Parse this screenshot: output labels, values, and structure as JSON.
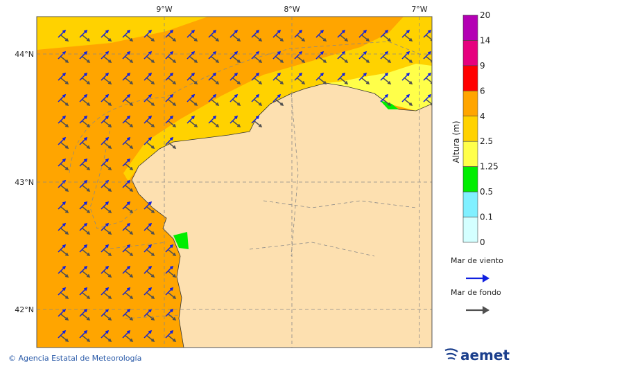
{
  "map": {
    "lon_labels": [
      "9°W",
      "8°W",
      "7°W"
    ],
    "lat_labels": [
      "44°N",
      "43°N",
      "42°N"
    ]
  },
  "colorbar": {
    "title": "Altura (m)",
    "labels": [
      "20",
      "14",
      "9",
      "6",
      "4",
      "2.5",
      "1.25",
      "0.5",
      "0.1",
      "0"
    ],
    "colors": [
      "#b400b4",
      "#e6007e",
      "#ff0000",
      "#ffa500",
      "#ffd200",
      "#ffff4a",
      "#00ee00",
      "#80f0ff",
      "#d4ffff"
    ]
  },
  "legend": {
    "items": [
      {
        "label": "Mar de viento",
        "color": "#1020e0"
      },
      {
        "label": "Mar de fondo",
        "color": "#505050"
      }
    ]
  },
  "footer": {
    "credit": "© Agencia Estatal de Meteorología",
    "logo": "aemet"
  }
}
